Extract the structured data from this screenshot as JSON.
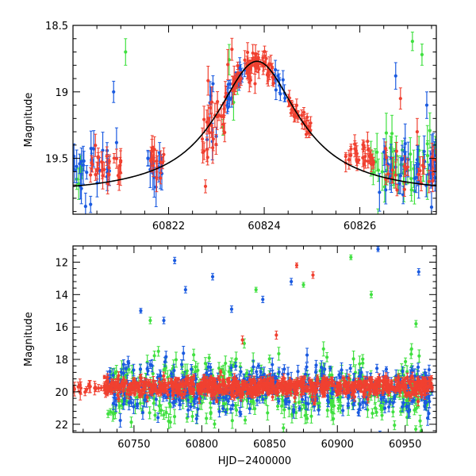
{
  "chart_data": [
    {
      "id": "top-panel",
      "type": "scatter",
      "title": "",
      "xlabel": "",
      "ylabel": "Magnitude",
      "xlim": [
        60820,
        60827.6
      ],
      "ylim": [
        18.5,
        19.92
      ],
      "y_inverted": true,
      "x_ticks": [
        60822,
        60824,
        60826
      ],
      "x_tick_labels": [
        "60822",
        "60824",
        "60826"
      ],
      "y_ticks": [
        18.5,
        19,
        19.5
      ],
      "y_tick_labels": [
        "18.5",
        "19",
        "19.5"
      ],
      "model_curve": {
        "name": "model",
        "color": "#000000",
        "t0": 60823.85,
        "peak_mag": 18.77,
        "baseline_mag": 19.78,
        "amplitude": 1.01,
        "width": 1.05,
        "x_range": [
          60820,
          60827.6
        ]
      },
      "series": [
        {
          "name": "green",
          "color": "#40e040",
          "segments": [
            {
              "x0": 60820.0,
              "x1": 60820.2,
              "n": 4,
              "mag_center": 19.7,
              "spread": 0.18,
              "err": 0.08
            },
            {
              "x0": 60823.1,
              "x1": 60823.5,
              "n": 4,
              "mag_center": 19.35,
              "spread": 0.25,
              "err": 0.1
            },
            {
              "x0": 60826.2,
              "x1": 60827.6,
              "n": 40,
              "mag_center": 19.55,
              "spread": 0.25,
              "err": 0.1
            }
          ],
          "highlights": [
            {
              "x": 60821.1,
              "y": 18.7,
              "err": 0.1
            },
            {
              "x": 60827.3,
              "y": 18.72,
              "err": 0.08
            },
            {
              "x": 60827.1,
              "y": 18.62,
              "err": 0.07
            }
          ]
        },
        {
          "name": "blue",
          "color": "#1a5ae0",
          "segments": [
            {
              "x0": 60820.0,
              "x1": 60821.0,
              "n": 26,
              "mag_center": 19.58,
              "spread": 0.18,
              "err": 0.1
            },
            {
              "x0": 60821.5,
              "x1": 60821.9,
              "n": 12,
              "mag_center": 19.6,
              "spread": 0.15,
              "err": 0.1
            },
            {
              "x0": 60822.8,
              "x1": 60823.0,
              "n": 6,
              "mag_center": 19.1,
              "spread": 0.3,
              "err": 0.12
            },
            {
              "x0": 60823.2,
              "x1": 60823.6,
              "n": 22,
              "mag_center": 18.95,
              "spread": 0.12,
              "err": 0.05
            },
            {
              "x0": 60824.2,
              "x1": 60824.45,
              "n": 10,
              "mag_center": 18.9,
              "spread": 0.1,
              "err": 0.05
            },
            {
              "x0": 60826.4,
              "x1": 60827.6,
              "n": 38,
              "mag_center": 19.55,
              "spread": 0.2,
              "err": 0.1
            }
          ],
          "highlights": [
            {
              "x": 60820.85,
              "y": 19.0,
              "err": 0.08
            },
            {
              "x": 60826.75,
              "y": 18.88,
              "err": 0.1
            },
            {
              "x": 60827.4,
              "y": 19.1,
              "err": 0.1
            }
          ]
        },
        {
          "name": "red",
          "color": "#f04030",
          "segments": [
            {
              "x0": 60820.3,
              "x1": 60821.0,
              "n": 26,
              "mag_center": 19.56,
              "spread": 0.1,
              "err": 0.07
            },
            {
              "x0": 60821.6,
              "x1": 60821.9,
              "n": 14,
              "mag_center": 19.5,
              "spread": 0.1,
              "err": 0.07
            },
            {
              "x0": 60822.7,
              "x1": 60823.4,
              "n": 36,
              "mag_center": 19.1,
              "spread": 0.3,
              "err": 0.08
            },
            {
              "x0": 60823.4,
              "x1": 60824.2,
              "n": 60,
              "mag_center": 18.84,
              "spread": 0.1,
              "err": 0.05
            },
            {
              "x0": 60824.5,
              "x1": 60825.0,
              "n": 30,
              "mag_center": 19.2,
              "spread": 0.07,
              "err": 0.04
            },
            {
              "x0": 60825.7,
              "x1": 60826.3,
              "n": 30,
              "mag_center": 19.5,
              "spread": 0.08,
              "err": 0.05
            },
            {
              "x0": 60826.5,
              "x1": 60827.6,
              "n": 24,
              "mag_center": 19.6,
              "spread": 0.12,
              "err": 0.07
            }
          ],
          "highlights": [
            {
              "x": 60826.85,
              "y": 19.05,
              "err": 0.08
            },
            {
              "x": 60827.2,
              "y": 19.3,
              "err": 0.1
            }
          ]
        }
      ]
    },
    {
      "id": "bottom-panel",
      "type": "scatter",
      "title": "",
      "xlabel": "HJD−2400000",
      "ylabel": "Magnitude",
      "xlim": [
        60705,
        60973
      ],
      "ylim": [
        11,
        22.5
      ],
      "y_inverted": true,
      "x_ticks": [
        60750,
        60800,
        60850,
        60900,
        60950
      ],
      "x_tick_labels": [
        "60750",
        "60800",
        "60850",
        "60900",
        "60950"
      ],
      "y_ticks": [
        12,
        14,
        16,
        18,
        20,
        22
      ],
      "y_tick_labels": [
        "12",
        "14",
        "16",
        "18",
        "20",
        "22"
      ],
      "series": [
        {
          "name": "green",
          "color": "#40e040",
          "segments": [
            {
              "x0": 60730,
              "x1": 60970,
              "n": 420,
              "mag_center": 19.9,
              "spread": 1.6,
              "err": 0.35
            }
          ],
          "highlights": [
            {
              "x": 60762,
              "y": 15.6,
              "err": 0.2
            },
            {
              "x": 60768,
              "y": 17.5,
              "err": 0.3
            },
            {
              "x": 60840,
              "y": 13.7,
              "err": 0.15
            },
            {
              "x": 60875,
              "y": 13.4,
              "err": 0.15
            },
            {
              "x": 60910,
              "y": 11.7,
              "err": 0.15
            },
            {
              "x": 60925,
              "y": 14.0,
              "err": 0.2
            },
            {
              "x": 60958,
              "y": 15.8,
              "err": 0.2
            }
          ]
        },
        {
          "name": "blue",
          "color": "#1a5ae0",
          "segments": [
            {
              "x0": 60730,
              "x1": 60970,
              "n": 420,
              "mag_center": 19.8,
              "spread": 1.3,
              "err": 0.3
            }
          ],
          "highlights": [
            {
              "x": 60755,
              "y": 15.0,
              "err": 0.15
            },
            {
              "x": 60772,
              "y": 15.6,
              "err": 0.2
            },
            {
              "x": 60780,
              "y": 11.9,
              "err": 0.2
            },
            {
              "x": 60788,
              "y": 13.7,
              "err": 0.2
            },
            {
              "x": 60808,
              "y": 12.9,
              "err": 0.2
            },
            {
              "x": 60822,
              "y": 14.9,
              "err": 0.2
            },
            {
              "x": 60845,
              "y": 14.3,
              "err": 0.2
            },
            {
              "x": 60866,
              "y": 13.2,
              "err": 0.2
            },
            {
              "x": 60930,
              "y": 11.2,
              "err": 0.15
            },
            {
              "x": 60960,
              "y": 12.6,
              "err": 0.2
            }
          ]
        },
        {
          "name": "red",
          "color": "#f04030",
          "segments": [
            {
              "x0": 60705,
              "x1": 60727,
              "n": 18,
              "mag_center": 19.75,
              "spread": 0.25,
              "err": 0.3
            },
            {
              "x0": 60728,
              "x1": 60970,
              "n": 820,
              "mag_center": 19.7,
              "spread": 0.45,
              "err": 0.2
            }
          ],
          "highlights": [
            {
              "x": 60870,
              "y": 12.2,
              "err": 0.15
            },
            {
              "x": 60882,
              "y": 12.8,
              "err": 0.2
            },
            {
              "x": 60830,
              "y": 16.8,
              "err": 0.25
            },
            {
              "x": 60855,
              "y": 16.5,
              "err": 0.25
            }
          ]
        }
      ]
    }
  ]
}
